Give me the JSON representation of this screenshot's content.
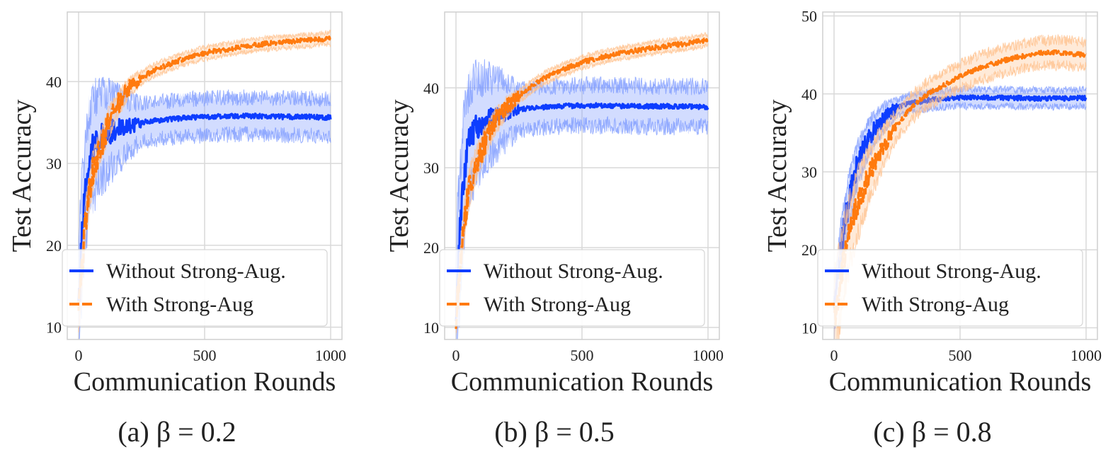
{
  "figure": {
    "colors": {
      "without": "#0d3dff",
      "without_band": "#7f9cff",
      "with": "#ff7a0e",
      "with_band": "#ffc28f",
      "grid": "#d9d9d9",
      "frame": "#cfcfcf"
    }
  },
  "chart_data": [
    {
      "type": "line",
      "caption": "(a) β = 0.2",
      "xlabel": "Communication Rounds",
      "ylabel": "Test Accuracy",
      "xlim": [
        -45,
        1045
      ],
      "ylim": [
        8.5,
        48.5
      ],
      "xticks": [
        0,
        500,
        1000
      ],
      "yticks": [
        10,
        20,
        30,
        40
      ],
      "grid": true,
      "legend_position": "bottom",
      "series": [
        {
          "name": "Without Strong-Aug.",
          "style": "solid",
          "color": "#0d3dff",
          "band": 2.5,
          "x": [
            0,
            10,
            20,
            30,
            40,
            50,
            60,
            80,
            100,
            120,
            150,
            200,
            250,
            300,
            400,
            500,
            600,
            700,
            800,
            900,
            1000
          ],
          "y": [
            12,
            19.5,
            24,
            27.5,
            30,
            31.5,
            32,
            33,
            33.5,
            33.8,
            34.2,
            34.6,
            35,
            35.2,
            35.5,
            35.7,
            35.8,
            35.8,
            35.7,
            35.7,
            35.6
          ]
        },
        {
          "name": "With Strong-Aug",
          "style": "dashed",
          "color": "#ff7a0e",
          "band": 0.8,
          "x": [
            0,
            10,
            20,
            30,
            40,
            50,
            60,
            80,
            100,
            120,
            150,
            200,
            250,
            300,
            350,
            400,
            500,
            600,
            700,
            800,
            900,
            1000
          ],
          "y": [
            11,
            15.5,
            20,
            23.5,
            26,
            28,
            29.5,
            31.5,
            33,
            35,
            37,
            39.3,
            40.5,
            41.4,
            42,
            42.6,
            43.5,
            44,
            44.5,
            44.8,
            45,
            45.3
          ]
        }
      ]
    },
    {
      "type": "line",
      "caption": "(b) β = 0.5",
      "xlabel": "Communication Rounds",
      "ylabel": "Test Accuracy",
      "xlim": [
        -45,
        1045
      ],
      "ylim": [
        8.5,
        49.5
      ],
      "xticks": [
        0,
        500,
        1000
      ],
      "yticks": [
        10,
        20,
        30,
        40
      ],
      "grid": true,
      "legend_position": "bottom",
      "series": [
        {
          "name": "Without Strong-Aug.",
          "style": "solid",
          "color": "#0d3dff",
          "band": 2.8,
          "x": [
            0,
            10,
            20,
            30,
            40,
            50,
            60,
            80,
            100,
            120,
            150,
            200,
            250,
            300,
            400,
            500,
            600,
            700,
            800,
            900,
            1000
          ],
          "y": [
            12,
            19,
            24,
            28,
            31,
            33,
            34,
            35,
            35.5,
            36,
            36.5,
            37,
            37.3,
            37.5,
            37.7,
            37.8,
            37.8,
            37.7,
            37.7,
            37.7,
            37.6
          ]
        },
        {
          "name": "With Strong-Aug",
          "style": "dashed",
          "color": "#ff7a0e",
          "band": 0.8,
          "x": [
            0,
            10,
            20,
            30,
            40,
            50,
            60,
            80,
            100,
            120,
            150,
            200,
            250,
            300,
            350,
            400,
            500,
            600,
            700,
            800,
            900,
            1000
          ],
          "y": [
            11,
            15,
            19,
            22.5,
            25,
            27,
            28.5,
            30.5,
            32,
            33.5,
            35.5,
            37.5,
            39,
            40.2,
            41.2,
            42,
            43.2,
            44,
            44.6,
            45.1,
            45.5,
            46
          ]
        }
      ]
    },
    {
      "type": "line",
      "caption": "(c) β = 0.8",
      "xlabel": "Communication Rounds",
      "ylabel": "Test Accuracy",
      "xlim": [
        -45,
        1045
      ],
      "ylim": [
        8.5,
        50.5
      ],
      "xticks": [
        0,
        500,
        1000
      ],
      "yticks": [
        10,
        20,
        30,
        40,
        50
      ],
      "grid": true,
      "legend_position": "bottom",
      "series": [
        {
          "name": "Without Strong-Aug.",
          "style": "solid",
          "color": "#0d3dff",
          "band": 1.2,
          "x": [
            0,
            20,
            40,
            60,
            80,
            100,
            120,
            150,
            200,
            250,
            300,
            400,
            500,
            600,
            700,
            800,
            900,
            1000
          ],
          "y": [
            12,
            18,
            23,
            26.5,
            29.5,
            31.5,
            33,
            35,
            37,
            38.2,
            38.8,
            39.3,
            39.5,
            39.5,
            39.5,
            39.4,
            39.4,
            39.5
          ]
        },
        {
          "name": "With Strong-Aug",
          "style": "dashed",
          "color": "#ff7a0e",
          "band": 1.8,
          "x": [
            0,
            20,
            40,
            60,
            80,
            100,
            120,
            150,
            200,
            250,
            300,
            350,
            400,
            500,
            600,
            700,
            800,
            900,
            1000
          ],
          "y": [
            11,
            15,
            19,
            22,
            24.5,
            26.5,
            28,
            30.5,
            33.5,
            36,
            38,
            39.5,
            40.5,
            42.3,
            43.6,
            44.5,
            45.2,
            45.3,
            45
          ]
        }
      ]
    }
  ]
}
